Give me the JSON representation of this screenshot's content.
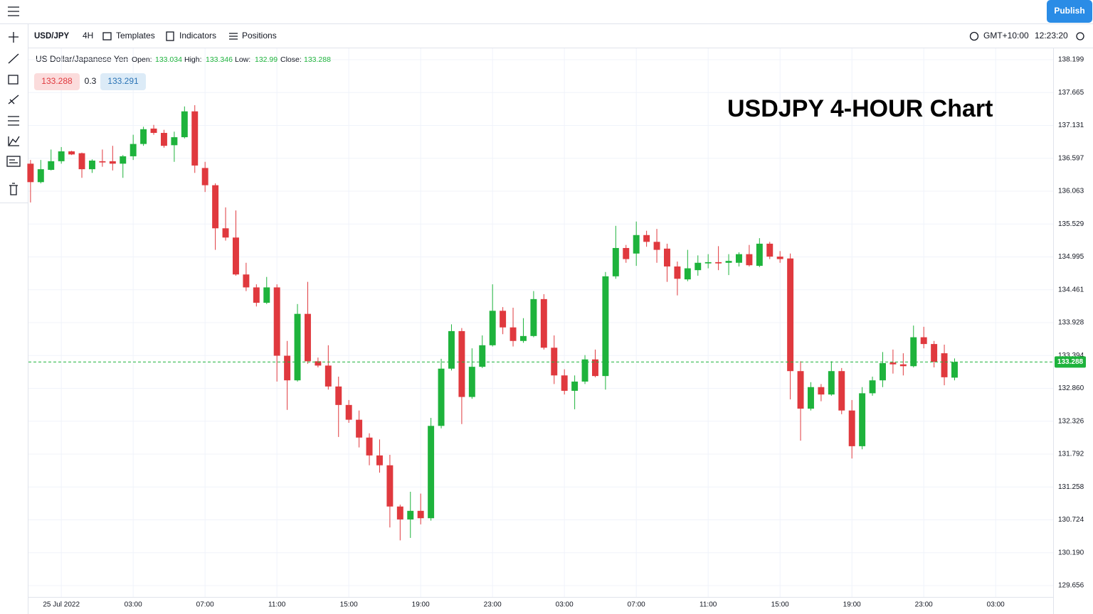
{
  "ui": {
    "publish": "Publish",
    "symbol": "USD/JPY",
    "interval": "4H",
    "templates": "Templates",
    "indicators": "Indicators",
    "positions": "Positions",
    "timezone": "GMT+10:00",
    "clock": "12:23:20",
    "instrument": "US Dollar/Japanese Yen",
    "open_label": "Open:",
    "high_label": "High:",
    "low_label": "Low:",
    "close_label": "Close:",
    "spread": "0.3",
    "ask": "133.291"
  },
  "chart_data": {
    "type": "candlestick",
    "title": "USDJPY 4-HOUR Chart",
    "open": [
      136.51,
      136.21,
      136.41,
      136.55,
      136.71,
      136.68,
      136.42,
      136.55,
      136.55,
      136.51,
      136.63,
      136.83,
      137.08,
      137.01,
      136.81,
      136.94,
      137.36,
      136.44,
      136.16,
      135.46,
      135.31,
      134.71,
      134.5,
      134.25,
      134.5,
      133.39,
      132.99,
      134.07,
      133.3,
      133.23,
      132.89,
      132.59,
      132.35,
      132.06,
      131.77,
      131.61,
      130.94,
      130.73,
      130.87,
      130.75,
      132.25,
      133.18,
      133.79,
      132.72,
      133.21,
      133.56,
      134.12,
      133.85,
      133.63,
      133.71,
      134.31,
      133.52,
      133.07,
      132.82,
      132.97,
      133.33,
      133.06,
      134.68,
      135.14,
      135.05,
      135.35,
      135.24,
      135.13,
      134.84,
      134.63,
      134.78,
      134.89,
      134.91,
      134.9,
      134.9,
      135.04,
      134.85,
      135.21,
      135.0,
      134.97,
      133.14,
      132.53,
      132.88,
      132.76,
      133.14,
      132.5,
      131.92,
      132.78,
      132.99,
      133.28,
      133.25,
      133.22,
      133.69,
      133.58,
      133.43,
      133.034
    ],
    "high": [
      136.57,
      136.57,
      136.74,
      136.78,
      136.72,
      136.69,
      136.58,
      136.74,
      136.8,
      136.65,
      136.98,
      137.11,
      137.14,
      137.06,
      137.03,
      137.44,
      137.46,
      136.54,
      136.19,
      135.8,
      135.75,
      134.9,
      134.55,
      134.67,
      134.55,
      133.63,
      134.23,
      134.59,
      133.36,
      133.56,
      133.05,
      132.67,
      132.5,
      132.13,
      132.03,
      131.78,
      130.97,
      131.18,
      131.15,
      132.38,
      133.34,
      133.9,
      133.84,
      133.51,
      133.72,
      134.55,
      134.18,
      134.17,
      134.0,
      134.44,
      134.39,
      133.72,
      133.17,
      133.07,
      133.4,
      133.49,
      134.75,
      135.5,
      135.19,
      135.57,
      135.42,
      135.45,
      135.21,
      134.92,
      135.11,
      135.02,
      135.04,
      135.17,
      135.04,
      135.07,
      135.19,
      135.3,
      135.24,
      135.09,
      135.05,
      133.3,
      132.96,
      132.93,
      133.3,
      133.19,
      132.67,
      132.88,
      133.05,
      133.45,
      133.49,
      133.43,
      133.88,
      133.86,
      133.63,
      133.57,
      133.346
    ],
    "low": [
      135.88,
      136.19,
      136.4,
      136.51,
      136.65,
      136.28,
      136.36,
      136.46,
      136.4,
      136.28,
      136.57,
      136.8,
      136.98,
      136.77,
      136.54,
      136.92,
      136.36,
      136.05,
      135.11,
      135.26,
      134.69,
      134.44,
      134.19,
      134.23,
      132.97,
      132.51,
      132.97,
      133.26,
      133.2,
      132.84,
      132.07,
      132.3,
      131.9,
      131.61,
      131.49,
      130.6,
      130.39,
      130.43,
      130.65,
      130.71,
      132.21,
      133.15,
      132.28,
      132.69,
      133.19,
      133.54,
      133.74,
      133.54,
      133.6,
      133.69,
      133.49,
      132.93,
      132.76,
      132.52,
      132.93,
      133.04,
      132.84,
      134.64,
      134.9,
      134.85,
      135.16,
      134.9,
      134.59,
      134.37,
      134.6,
      134.69,
      134.81,
      134.78,
      134.7,
      134.84,
      134.84,
      134.83,
      134.96,
      134.9,
      132.68,
      132.01,
      132.5,
      132.65,
      132.74,
      132.44,
      131.72,
      131.87,
      132.74,
      132.88,
      133.1,
      133.07,
      133.2,
      133.51,
      133.2,
      132.91,
      132.99
    ],
    "close": [
      136.21,
      136.42,
      136.55,
      136.71,
      136.66,
      136.42,
      136.56,
      136.53,
      136.51,
      136.63,
      136.83,
      137.07,
      137.01,
      136.8,
      136.94,
      137.36,
      136.48,
      136.16,
      135.46,
      135.31,
      134.71,
      134.5,
      134.25,
      134.5,
      133.39,
      132.99,
      134.07,
      133.3,
      133.23,
      132.89,
      132.59,
      132.35,
      132.06,
      131.77,
      131.61,
      130.94,
      130.73,
      130.87,
      130.75,
      132.25,
      133.18,
      133.79,
      132.72,
      133.21,
      133.56,
      134.12,
      133.85,
      133.63,
      133.71,
      134.31,
      133.52,
      133.07,
      132.82,
      132.97,
      133.33,
      133.06,
      134.68,
      135.14,
      134.96,
      135.35,
      135.24,
      135.11,
      134.84,
      134.64,
      134.81,
      134.9,
      134.91,
      134.89,
      134.93,
      135.04,
      134.86,
      135.21,
      135.0,
      134.96,
      133.14,
      132.53,
      132.88,
      132.76,
      133.14,
      132.5,
      131.92,
      132.78,
      132.99,
      133.27,
      133.25,
      133.22,
      133.69,
      133.58,
      133.29,
      133.04,
      133.288
    ],
    "up_color": "#1eb33c",
    "down_color": "#e0393e",
    "grid": true,
    "ylim": [
      129.471,
      138.384
    ],
    "yticks": [
      138.199,
      137.665,
      137.131,
      136.597,
      136.063,
      135.529,
      134.995,
      134.461,
      133.928,
      133.394,
      {
        "value": 132.86,
        "label": "132.860"
      },
      132.326,
      131.792,
      131.258,
      130.724,
      {
        "value": 130.19,
        "label": "130.190"
      },
      129.656
    ],
    "xlim": [
      -0.2,
      99.6
    ],
    "xticks": [
      {
        "value": 3,
        "label": "25 Jul 2022"
      },
      {
        "value": 10,
        "label": "03:00"
      },
      {
        "value": 17,
        "label": "07:00"
      },
      {
        "value": 24,
        "label": "11:00"
      },
      {
        "value": 31,
        "label": "15:00"
      },
      {
        "value": 38,
        "label": "19:00"
      },
      {
        "value": 45,
        "label": "23:00"
      },
      {
        "value": 52,
        "label": "03:00"
      },
      {
        "value": 59,
        "label": "07:00"
      },
      {
        "value": 66,
        "label": "11:00"
      },
      {
        "value": 73,
        "label": "15:00"
      },
      {
        "value": 80,
        "label": "19:00"
      },
      {
        "value": 87,
        "label": "23:00"
      },
      {
        "value": 94,
        "label": "03:00"
      }
    ]
  }
}
